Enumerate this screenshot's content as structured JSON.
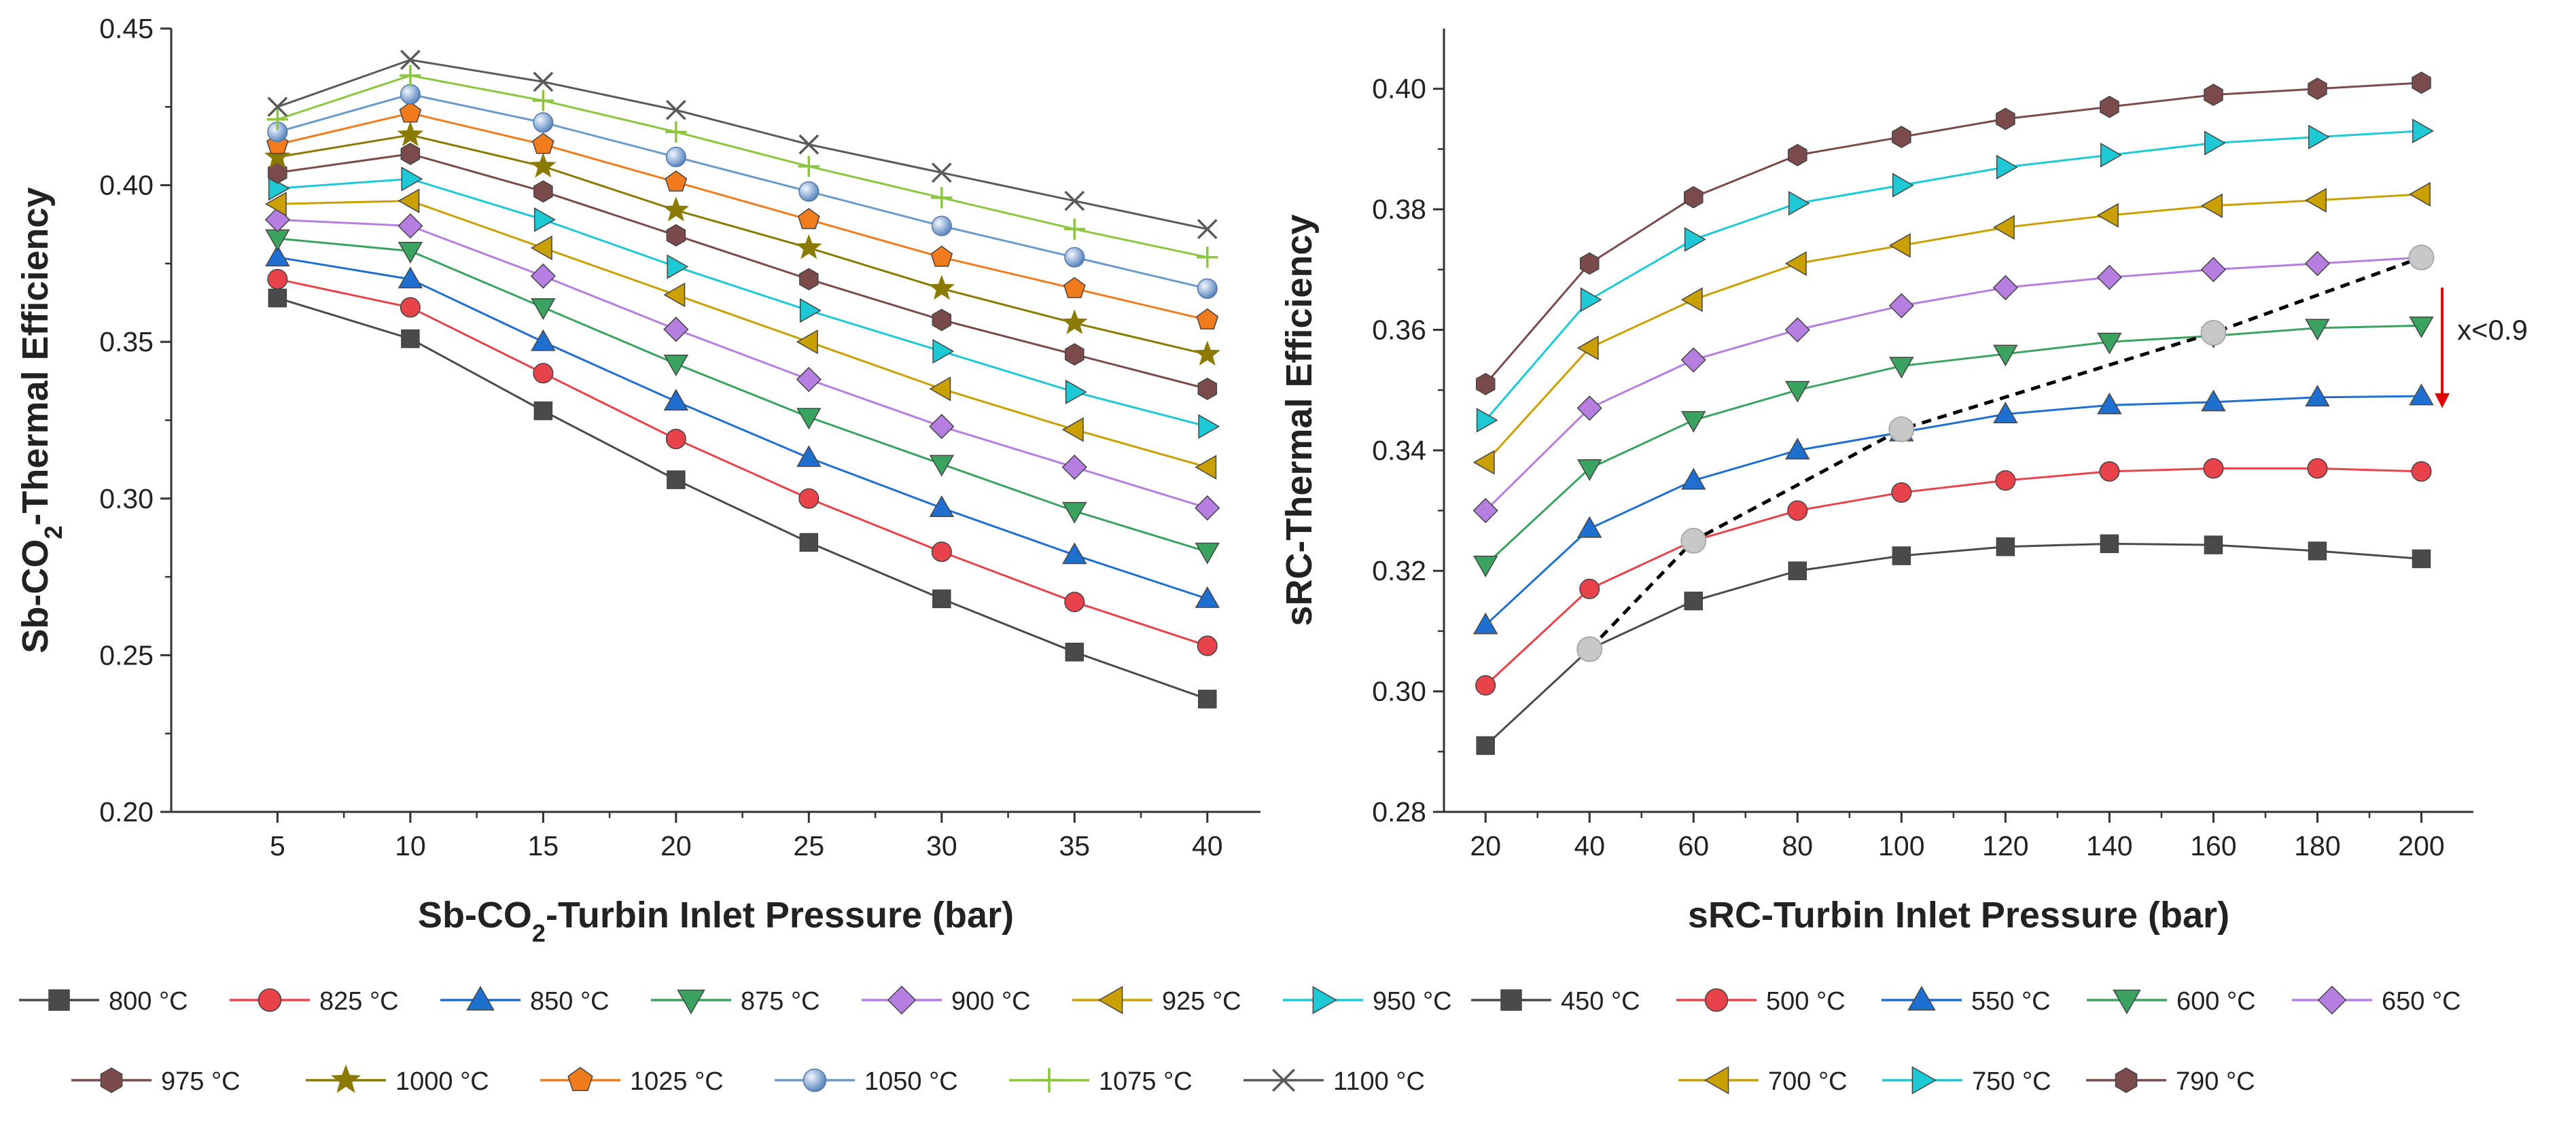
{
  "chart_data": [
    {
      "type": "line",
      "ylabel_parts": [
        "Sb-CO",
        "2",
        "-Thermal Efficiency"
      ],
      "xlabel_parts": [
        "Sb-CO",
        "2",
        "-Turbin Inlet Pressure (bar)"
      ],
      "x": [
        5,
        10,
        15,
        20,
        25,
        30,
        35,
        40
      ],
      "xlim": [
        1,
        42
      ],
      "ylim": [
        0.2,
        0.45
      ],
      "xticks": [
        5,
        10,
        15,
        20,
        25,
        30,
        35,
        40
      ],
      "xtick_labels": [
        "5",
        "10",
        "15",
        "20",
        "25",
        "30",
        "35",
        "40"
      ],
      "yticks": [
        0.2,
        0.25,
        0.3,
        0.35,
        0.4,
        0.45
      ],
      "ytick_labels": [
        "0.20",
        "0.25",
        "0.30",
        "0.35",
        "0.40",
        "0.45"
      ],
      "series": [
        {
          "name": "800 °C",
          "marker": "square",
          "color": "#4a4a4a",
          "values": [
            0.364,
            0.351,
            0.328,
            0.306,
            0.286,
            0.268,
            0.251,
            0.236
          ]
        },
        {
          "name": "825 °C",
          "marker": "circle",
          "color": "#e8424a",
          "values": [
            0.37,
            0.361,
            0.34,
            0.319,
            0.3,
            0.283,
            0.267,
            0.253
          ]
        },
        {
          "name": "850 °C",
          "marker": "triup",
          "color": "#1f6fd1",
          "values": [
            0.377,
            0.37,
            0.35,
            0.331,
            0.313,
            0.297,
            0.282,
            0.268
          ]
        },
        {
          "name": "875 °C",
          "marker": "tridown",
          "color": "#3aa35f",
          "values": [
            0.383,
            0.379,
            0.361,
            0.343,
            0.326,
            0.311,
            0.296,
            0.283
          ]
        },
        {
          "name": "900 °C",
          "marker": "diamond",
          "color": "#b57ee0",
          "values": [
            0.389,
            0.387,
            0.371,
            0.354,
            0.338,
            0.323,
            0.31,
            0.297
          ]
        },
        {
          "name": "925 °C",
          "marker": "trileft",
          "color": "#c9a000",
          "values": [
            0.394,
            0.395,
            0.38,
            0.365,
            0.35,
            0.335,
            0.322,
            0.31
          ]
        },
        {
          "name": "950 °C",
          "marker": "triright",
          "color": "#1ec9d6",
          "values": [
            0.399,
            0.402,
            0.389,
            0.374,
            0.36,
            0.347,
            0.334,
            0.323
          ]
        },
        {
          "name": "975 °C",
          "marker": "hexagon",
          "color": "#7b4a4a",
          "values": [
            0.404,
            0.41,
            0.398,
            0.384,
            0.37,
            0.357,
            0.346,
            0.335
          ]
        },
        {
          "name": "1000 °C",
          "marker": "star",
          "color": "#8a7a00",
          "values": [
            0.409,
            0.416,
            0.406,
            0.392,
            0.38,
            0.367,
            0.356,
            0.346
          ]
        },
        {
          "name": "1025 °C",
          "marker": "pentagon",
          "color": "#f07c1e",
          "values": [
            0.413,
            0.423,
            0.413,
            0.401,
            0.389,
            0.377,
            0.367,
            0.357
          ]
        },
        {
          "name": "1050 °C",
          "marker": "sphere",
          "color": "#6a9ac9",
          "values": [
            0.417,
            0.429,
            0.42,
            0.409,
            0.398,
            0.387,
            0.377,
            0.367
          ]
        },
        {
          "name": "1075 °C",
          "marker": "plus",
          "color": "#8cc63f",
          "values": [
            0.421,
            0.435,
            0.427,
            0.417,
            0.406,
            0.396,
            0.386,
            0.377
          ]
        },
        {
          "name": "1100 °C",
          "marker": "cross",
          "color": "#5a5a5a",
          "values": [
            0.425,
            0.44,
            0.433,
            0.424,
            0.413,
            0.404,
            0.395,
            0.386
          ]
        }
      ]
    },
    {
      "type": "line",
      "ylabel_parts": [
        "sRC-Thermal Efficiency"
      ],
      "xlabel_parts": [
        "sRC-Turbin Inlet Pressure (bar)"
      ],
      "x": [
        20,
        40,
        60,
        80,
        100,
        120,
        140,
        160,
        180,
        200
      ],
      "xlim": [
        12,
        210
      ],
      "ylim": [
        0.28,
        0.41
      ],
      "xticks": [
        20,
        40,
        60,
        80,
        100,
        120,
        140,
        160,
        180,
        200
      ],
      "xtick_labels": [
        "20",
        "40",
        "60",
        "80",
        "100",
        "120",
        "140",
        "160",
        "180",
        "200"
      ],
      "yticks": [
        0.28,
        0.3,
        0.32,
        0.34,
        0.36,
        0.38,
        0.4
      ],
      "ytick_labels": [
        "0.28",
        "0.30",
        "0.32",
        "0.34",
        "0.36",
        "0.38",
        "0.40"
      ],
      "series": [
        {
          "name": "450 °C",
          "marker": "square",
          "color": "#4a4a4a",
          "values": [
            0.291,
            0.307,
            0.315,
            0.32,
            0.3225,
            0.324,
            0.3245,
            0.3243,
            0.3233,
            0.322
          ]
        },
        {
          "name": "500 °C",
          "marker": "circle",
          "color": "#e8424a",
          "values": [
            0.301,
            0.317,
            0.325,
            0.33,
            0.333,
            0.335,
            0.3365,
            0.337,
            0.337,
            0.3365
          ]
        },
        {
          "name": "550 °C",
          "marker": "triup",
          "color": "#1f6fd1",
          "values": [
            0.311,
            0.327,
            0.335,
            0.34,
            0.343,
            0.346,
            0.3475,
            0.348,
            0.3488,
            0.349
          ]
        },
        {
          "name": "600 °C",
          "marker": "tridown",
          "color": "#3aa35f",
          "values": [
            0.321,
            0.337,
            0.345,
            0.35,
            0.354,
            0.356,
            0.358,
            0.359,
            0.3603,
            0.3607
          ]
        },
        {
          "name": "650 °C",
          "marker": "diamond",
          "color": "#b57ee0",
          "values": [
            0.33,
            0.347,
            0.355,
            0.36,
            0.364,
            0.367,
            0.3687,
            0.37,
            0.371,
            0.372
          ]
        },
        {
          "name": "700 °C",
          "marker": "trileft",
          "color": "#c9a000",
          "values": [
            0.338,
            0.357,
            0.365,
            0.371,
            0.374,
            0.377,
            0.379,
            0.3806,
            0.3815,
            0.3825
          ]
        },
        {
          "name": "750 °C",
          "marker": "triright",
          "color": "#1ec9d6",
          "values": [
            0.345,
            0.365,
            0.375,
            0.381,
            0.384,
            0.387,
            0.389,
            0.391,
            0.392,
            0.393
          ]
        },
        {
          "name": "790 °C",
          "marker": "hexagon",
          "color": "#7b4a4a",
          "values": [
            0.351,
            0.371,
            0.382,
            0.389,
            0.392,
            0.395,
            0.397,
            0.399,
            0.4,
            0.401
          ]
        }
      ],
      "quality_line": {
        "label": "x<0.9",
        "color": "#000000",
        "points": [
          [
            40,
            0.307
          ],
          [
            60,
            0.325
          ],
          [
            100,
            0.3435
          ],
          [
            160,
            0.3595
          ],
          [
            200,
            0.372
          ]
        ]
      },
      "arrow": {
        "color": "#e00000",
        "x": 204,
        "from": 0.367,
        "to": 0.347
      }
    }
  ]
}
